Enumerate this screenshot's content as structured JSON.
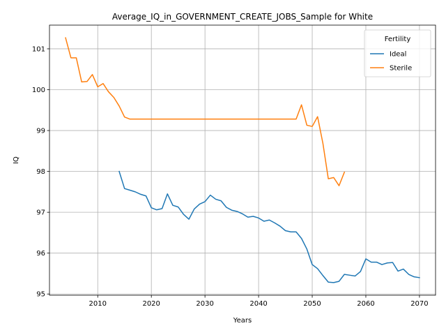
{
  "chart_data": {
    "type": "line",
    "title": "Average_IQ_in_GOVERNMENT_CREATE_JOBS_Sample for White",
    "xlabel": "Years",
    "ylabel": "IQ",
    "xlim": [
      2001,
      2073
    ],
    "ylim": [
      94.97,
      101.58
    ],
    "xticks": [
      2010,
      2020,
      2030,
      2040,
      2050,
      2060,
      2070
    ],
    "yticks": [
      95,
      96,
      97,
      98,
      99,
      100,
      101
    ],
    "grid": true,
    "legend": {
      "title": "Fertility",
      "placement": "top-right"
    },
    "series": [
      {
        "name": "Ideal",
        "color": "#1f77b4",
        "x": [
          2014,
          2015,
          2016,
          2017,
          2018,
          2019,
          2020,
          2021,
          2022,
          2023,
          2024,
          2025,
          2026,
          2027,
          2028,
          2029,
          2030,
          2031,
          2032,
          2033,
          2034,
          2035,
          2036,
          2037,
          2038,
          2039,
          2040,
          2041,
          2042,
          2043,
          2044,
          2045,
          2046,
          2047,
          2048,
          2049,
          2050,
          2051,
          2052,
          2053,
          2054,
          2055,
          2056,
          2057,
          2058,
          2059,
          2060,
          2061,
          2062,
          2063,
          2064,
          2065,
          2066,
          2067,
          2068,
          2069,
          2070
        ],
        "values": [
          98.0,
          97.58,
          97.54,
          97.5,
          97.44,
          97.4,
          97.11,
          97.06,
          97.09,
          97.45,
          97.17,
          97.13,
          96.95,
          96.83,
          97.08,
          97.2,
          97.26,
          97.42,
          97.32,
          97.28,
          97.12,
          97.05,
          97.02,
          96.96,
          96.88,
          96.9,
          96.86,
          96.78,
          96.81,
          96.74,
          96.66,
          96.55,
          96.52,
          96.52,
          96.36,
          96.1,
          95.72,
          95.62,
          95.45,
          95.29,
          95.28,
          95.31,
          95.48,
          95.46,
          95.44,
          95.55,
          95.86,
          95.78,
          95.78,
          95.72,
          95.76,
          95.77,
          95.56,
          95.61,
          95.48,
          95.42,
          95.4
        ]
      },
      {
        "name": "Sterile",
        "color": "#ff7f0e",
        "x": [
          2004,
          2005,
          2006,
          2007,
          2008,
          2009,
          2010,
          2011,
          2012,
          2013,
          2014,
          2015,
          2016,
          2017,
          2018,
          2019,
          2020,
          2021,
          2022,
          2023,
          2024,
          2025,
          2026,
          2027,
          2028,
          2029,
          2030,
          2031,
          2032,
          2033,
          2034,
          2035,
          2036,
          2037,
          2038,
          2039,
          2040,
          2041,
          2042,
          2043,
          2044,
          2045,
          2046,
          2047,
          2048,
          2049,
          2050,
          2051,
          2052,
          2053,
          2054,
          2055,
          2056
        ],
        "values": [
          101.27,
          100.78,
          100.78,
          100.19,
          100.2,
          100.37,
          100.07,
          100.15,
          99.95,
          99.81,
          99.6,
          99.33,
          99.28,
          99.28,
          99.28,
          99.28,
          99.28,
          99.28,
          99.28,
          99.28,
          99.28,
          99.28,
          99.28,
          99.28,
          99.28,
          99.28,
          99.28,
          99.28,
          99.28,
          99.28,
          99.28,
          99.28,
          99.28,
          99.28,
          99.28,
          99.28,
          99.28,
          99.28,
          99.28,
          99.28,
          99.28,
          99.28,
          99.28,
          99.28,
          99.63,
          99.13,
          99.1,
          99.34,
          98.68,
          97.82,
          97.85,
          97.65,
          97.98
        ]
      }
    ]
  }
}
